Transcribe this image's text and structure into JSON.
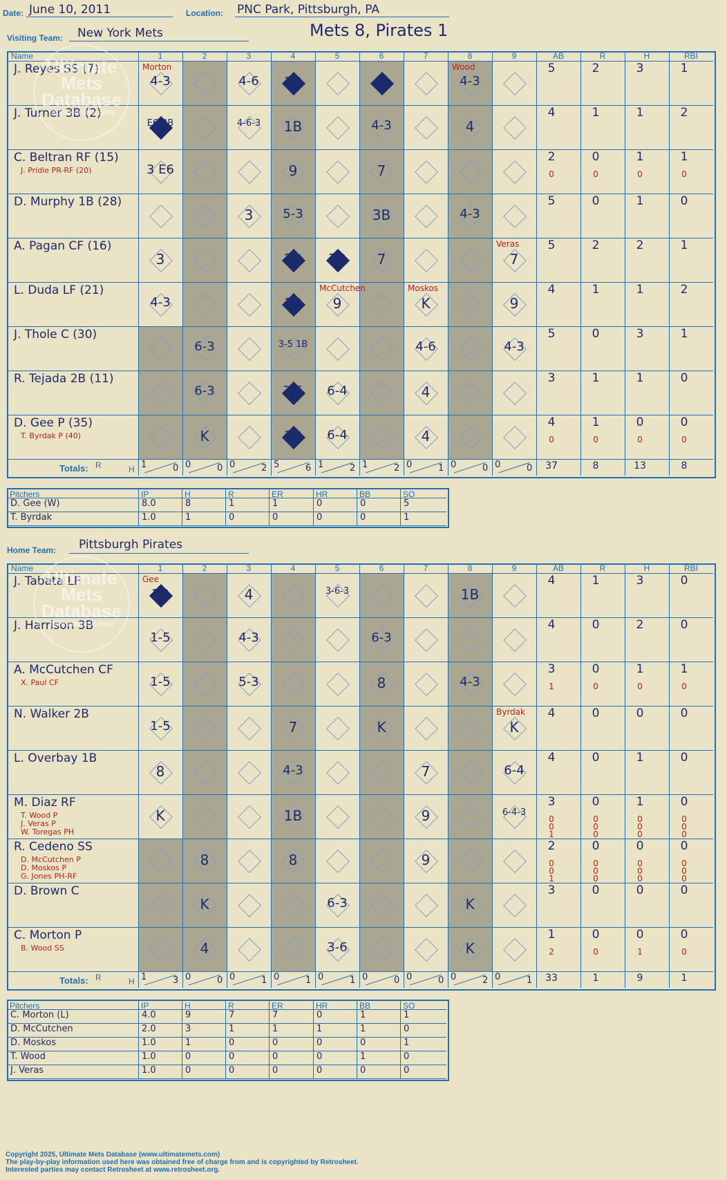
{
  "header": {
    "date_label": "Date:",
    "date": "June 10, 2011",
    "location_label": "Location:",
    "location": "PNC Park, Pittsburgh, PA",
    "score_title": "Mets 8, Pirates 1",
    "visiting_label": "Visiting Team:",
    "visiting_team": "New York Mets",
    "home_label": "Home Team:",
    "home_team": "Pittsburgh Pirates"
  },
  "columns": {
    "name": "Name",
    "innings": [
      "1",
      "2",
      "3",
      "4",
      "5",
      "6",
      "7",
      "8",
      "9"
    ],
    "stats": [
      "AB",
      "R",
      "H",
      "RBI"
    ]
  },
  "totals_label": "Totals:",
  "rh_label": [
    "R",
    "H"
  ],
  "visiting_lineup": [
    {
      "name": "J. Reyes SS (7)",
      "subs": [],
      "ab": [
        "5"
      ],
      "r": [
        "2"
      ],
      "h": [
        "3"
      ],
      "rbi": [
        "1"
      ]
    },
    {
      "name": "J. Turner 3B (2)",
      "subs": [],
      "ab": [
        "4"
      ],
      "r": [
        "1"
      ],
      "h": [
        "1"
      ],
      "rbi": [
        "2"
      ]
    },
    {
      "name": "C. Beltran RF (15)",
      "subs": [
        "J. Pridie PR-RF (20)"
      ],
      "ab": [
        "2",
        "0"
      ],
      "r": [
        "0",
        "0"
      ],
      "h": [
        "1",
        "0"
      ],
      "rbi": [
        "1",
        "0"
      ]
    },
    {
      "name": "D. Murphy 1B (28)",
      "subs": [],
      "ab": [
        "5"
      ],
      "r": [
        "0"
      ],
      "h": [
        "1"
      ],
      "rbi": [
        "0"
      ]
    },
    {
      "name": "A. Pagan CF (16)",
      "subs": [],
      "ab": [
        "5"
      ],
      "r": [
        "2"
      ],
      "h": [
        "2"
      ],
      "rbi": [
        "1"
      ]
    },
    {
      "name": "L. Duda LF (21)",
      "subs": [],
      "ab": [
        "4"
      ],
      "r": [
        "1"
      ],
      "h": [
        "1"
      ],
      "rbi": [
        "2"
      ]
    },
    {
      "name": "J. Thole C (30)",
      "subs": [],
      "ab": [
        "5"
      ],
      "r": [
        "0"
      ],
      "h": [
        "3"
      ],
      "rbi": [
        "1"
      ]
    },
    {
      "name": "R. Tejada 2B (11)",
      "subs": [],
      "ab": [
        "3"
      ],
      "r": [
        "1"
      ],
      "h": [
        "1"
      ],
      "rbi": [
        "0"
      ]
    },
    {
      "name": "D. Gee P (35)",
      "subs": [
        "T. Byrdak P (40)"
      ],
      "ab": [
        "4",
        "0"
      ],
      "r": [
        "1",
        "0"
      ],
      "h": [
        "0",
        "0"
      ],
      "rbi": [
        "0",
        "0"
      ]
    }
  ],
  "visiting_plays": [
    {
      "row": 0,
      "inn": 1,
      "text": "4-3"
    },
    {
      "row": 0,
      "inn": 3,
      "text": "4-6"
    },
    {
      "row": 0,
      "inn": 4,
      "text": "1B"
    },
    {
      "row": 0,
      "inn": 8,
      "text": "4-3"
    },
    {
      "row": 1,
      "inn": 1,
      "text": "E6 BB"
    },
    {
      "row": 1,
      "inn": 3,
      "text": "4-6-3"
    },
    {
      "row": 1,
      "inn": 4,
      "text": "1B"
    },
    {
      "row": 1,
      "inn": 6,
      "text": "4-3"
    },
    {
      "row": 1,
      "inn": 8,
      "text": "4"
    },
    {
      "row": 2,
      "inn": 1,
      "text": "3 E6"
    },
    {
      "row": 2,
      "inn": 4,
      "text": "9"
    },
    {
      "row": 2,
      "inn": 6,
      "text": "7"
    },
    {
      "row": 3,
      "inn": 3,
      "text": "3"
    },
    {
      "row": 3,
      "inn": 4,
      "text": "5-3"
    },
    {
      "row": 3,
      "inn": 6,
      "text": "3B"
    },
    {
      "row": 3,
      "inn": 8,
      "text": "4-3"
    },
    {
      "row": 4,
      "inn": 1,
      "text": "3"
    },
    {
      "row": 4,
      "inn": 4,
      "text": "2B"
    },
    {
      "row": 4,
      "inn": 5,
      "text": "3B"
    },
    {
      "row": 4,
      "inn": 6,
      "text": "7"
    },
    {
      "row": 4,
      "inn": 9,
      "text": "7"
    },
    {
      "row": 5,
      "inn": 1,
      "text": "4-3"
    },
    {
      "row": 5,
      "inn": 4,
      "text": "1B"
    },
    {
      "row": 5,
      "inn": 5,
      "text": "9"
    },
    {
      "row": 5,
      "inn": 7,
      "text": "K"
    },
    {
      "row": 5,
      "inn": 9,
      "text": "9"
    },
    {
      "row": 6,
      "inn": 2,
      "text": "6-3"
    },
    {
      "row": 6,
      "inn": 4,
      "text": "3-5 1B"
    },
    {
      "row": 6,
      "inn": 7,
      "text": "4-6"
    },
    {
      "row": 6,
      "inn": 9,
      "text": "4-3"
    },
    {
      "row": 7,
      "inn": 2,
      "text": "6-3"
    },
    {
      "row": 7,
      "inn": 4,
      "text": "3-5"
    },
    {
      "row": 7,
      "inn": 5,
      "text": "6-4"
    },
    {
      "row": 7,
      "inn": 7,
      "text": "4"
    },
    {
      "row": 8,
      "inn": 2,
      "text": "K"
    },
    {
      "row": 8,
      "inn": 4,
      "text": "1B"
    },
    {
      "row": 8,
      "inn": 5,
      "text": "6-4"
    },
    {
      "row": 8,
      "inn": 7,
      "text": "4"
    }
  ],
  "visiting_filled": [
    [
      0,
      4
    ],
    [
      0,
      6
    ],
    [
      1,
      1
    ],
    [
      4,
      4
    ],
    [
      4,
      5
    ],
    [
      5,
      4
    ],
    [
      7,
      4
    ],
    [
      8,
      4
    ]
  ],
  "visiting_annotations": [
    {
      "row": 0,
      "inn": 1,
      "text": "Morton"
    },
    {
      "row": 0,
      "inn": 8,
      "text": "Wood"
    },
    {
      "row": 4,
      "inn": 9,
      "text": "Veras"
    },
    {
      "row": 5,
      "inn": 5,
      "text": "McCutchen"
    },
    {
      "row": 5,
      "inn": 7,
      "text": "Moskos"
    }
  ],
  "visiting_totals": {
    "innings": [
      [
        "1",
        "0"
      ],
      [
        "0",
        "0"
      ],
      [
        "0",
        "2"
      ],
      [
        "5",
        "6"
      ],
      [
        "1",
        "2"
      ],
      [
        "1",
        "2"
      ],
      [
        "0",
        "1"
      ],
      [
        "0",
        "0"
      ],
      [
        "0",
        "0"
      ]
    ],
    "ab": "37",
    "r": "8",
    "h": "13",
    "rbi": "8"
  },
  "visiting_pitchers": {
    "headers": [
      "Pitchers",
      "IP",
      "H",
      "R",
      "ER",
      "HR",
      "BB",
      "SO"
    ],
    "rows": [
      [
        "D. Gee (W)",
        "8.0",
        "8",
        "1",
        "1",
        "0",
        "0",
        "5"
      ],
      [
        "T. Byrdak",
        "1.0",
        "1",
        "0",
        "0",
        "0",
        "0",
        "1"
      ]
    ]
  },
  "home_lineup": [
    {
      "name": "J. Tabata LF",
      "subs": [],
      "ab": [
        "4"
      ],
      "r": [
        "1"
      ],
      "h": [
        "3"
      ],
      "rbi": [
        "0"
      ]
    },
    {
      "name": "J. Harrison 3B",
      "subs": [],
      "ab": [
        "4"
      ],
      "r": [
        "0"
      ],
      "h": [
        "2"
      ],
      "rbi": [
        "0"
      ]
    },
    {
      "name": "A. McCutchen CF",
      "subs": [
        "X. Paul CF"
      ],
      "ab": [
        "3",
        "1"
      ],
      "r": [
        "0",
        "0"
      ],
      "h": [
        "1",
        "0"
      ],
      "rbi": [
        "1",
        "0"
      ]
    },
    {
      "name": "N. Walker 2B",
      "subs": [],
      "ab": [
        "4"
      ],
      "r": [
        "0"
      ],
      "h": [
        "0"
      ],
      "rbi": [
        "0"
      ]
    },
    {
      "name": "L. Overbay 1B",
      "subs": [],
      "ab": [
        "4"
      ],
      "r": [
        "0"
      ],
      "h": [
        "1"
      ],
      "rbi": [
        "0"
      ]
    },
    {
      "name": "M. Diaz RF",
      "subs": [
        "T. Wood P",
        "J. Veras P",
        "W. Toregas PH"
      ],
      "ab": [
        "3",
        "0",
        "0",
        "1"
      ],
      "r": [
        "0",
        "0",
        "0",
        "0"
      ],
      "h": [
        "1",
        "0",
        "0",
        "0"
      ],
      "rbi": [
        "0",
        "0",
        "0",
        "0"
      ]
    },
    {
      "name": "R. Cedeno SS",
      "subs": [
        "D. McCutchen P",
        "D. Moskos P",
        "G. Jones PH-RF"
      ],
      "ab": [
        "2",
        "0",
        "0",
        "1"
      ],
      "r": [
        "0",
        "0",
        "0",
        "0"
      ],
      "h": [
        "0",
        "0",
        "0",
        "0"
      ],
      "rbi": [
        "0",
        "0",
        "0",
        "0"
      ]
    },
    {
      "name": "D. Brown C",
      "subs": [],
      "ab": [
        "3"
      ],
      "r": [
        "0"
      ],
      "h": [
        "0"
      ],
      "rbi": [
        "0"
      ]
    },
    {
      "name": "C. Morton P",
      "subs": [
        "B. Wood SS"
      ],
      "ab": [
        "1",
        "2"
      ],
      "r": [
        "0",
        "0"
      ],
      "h": [
        "0",
        "1"
      ],
      "rbi": [
        "0",
        "0"
      ]
    }
  ],
  "home_plays": [
    {
      "row": 0,
      "inn": 1,
      "text": "1B"
    },
    {
      "row": 0,
      "inn": 3,
      "text": "4"
    },
    {
      "row": 0,
      "inn": 5,
      "text": "3-6-3"
    },
    {
      "row": 0,
      "inn": 8,
      "text": "1B"
    },
    {
      "row": 1,
      "inn": 1,
      "text": "1-5"
    },
    {
      "row": 1,
      "inn": 3,
      "text": "4-3"
    },
    {
      "row": 1,
      "inn": 6,
      "text": "6-3"
    },
    {
      "row": 2,
      "inn": 1,
      "text": "1-5"
    },
    {
      "row": 2,
      "inn": 3,
      "text": "5-3"
    },
    {
      "row": 2,
      "inn": 6,
      "text": "8"
    },
    {
      "row": 2,
      "inn": 8,
      "text": "4-3"
    },
    {
      "row": 3,
      "inn": 1,
      "text": "1-5"
    },
    {
      "row": 3,
      "inn": 4,
      "text": "7"
    },
    {
      "row": 3,
      "inn": 6,
      "text": "K"
    },
    {
      "row": 3,
      "inn": 9,
      "text": "K"
    },
    {
      "row": 4,
      "inn": 1,
      "text": "8"
    },
    {
      "row": 4,
      "inn": 4,
      "text": "4-3"
    },
    {
      "row": 4,
      "inn": 7,
      "text": "7"
    },
    {
      "row": 4,
      "inn": 9,
      "text": "6-4"
    },
    {
      "row": 5,
      "inn": 1,
      "text": "K"
    },
    {
      "row": 5,
      "inn": 4,
      "text": "1B"
    },
    {
      "row": 5,
      "inn": 7,
      "text": "9"
    },
    {
      "row": 5,
      "inn": 9,
      "text": "6-4-3"
    },
    {
      "row": 6,
      "inn": 2,
      "text": "8"
    },
    {
      "row": 6,
      "inn": 4,
      "text": "8"
    },
    {
      "row": 6,
      "inn": 7,
      "text": "9"
    },
    {
      "row": 7,
      "inn": 2,
      "text": "K"
    },
    {
      "row": 7,
      "inn": 5,
      "text": "6-3"
    },
    {
      "row": 7,
      "inn": 8,
      "text": "K"
    },
    {
      "row": 8,
      "inn": 2,
      "text": "4"
    },
    {
      "row": 8,
      "inn": 5,
      "text": "3-6"
    },
    {
      "row": 8,
      "inn": 8,
      "text": "K"
    }
  ],
  "home_filled": [
    [
      0,
      1
    ]
  ],
  "home_annotations": [
    {
      "row": 0,
      "inn": 1,
      "text": "Gee"
    },
    {
      "row": 3,
      "inn": 9,
      "text": "Byrdak"
    }
  ],
  "home_totals": {
    "innings": [
      [
        "1",
        "3"
      ],
      [
        "0",
        "0"
      ],
      [
        "0",
        "1"
      ],
      [
        "0",
        "1"
      ],
      [
        "0",
        "1"
      ],
      [
        "0",
        "0"
      ],
      [
        "0",
        "0"
      ],
      [
        "0",
        "2"
      ],
      [
        "0",
        "1"
      ]
    ],
    "ab": "33",
    "r": "1",
    "h": "9",
    "rbi": "1"
  },
  "home_pitchers": {
    "headers": [
      "Pitchers",
      "IP",
      "H",
      "R",
      "ER",
      "HR",
      "BB",
      "SO"
    ],
    "rows": [
      [
        "C. Morton (L)",
        "4.0",
        "9",
        "7",
        "7",
        "0",
        "1",
        "1"
      ],
      [
        "D. McCutchen",
        "2.0",
        "3",
        "1",
        "1",
        "1",
        "1",
        "0"
      ],
      [
        "D. Moskos",
        "1.0",
        "1",
        "0",
        "0",
        "0",
        "0",
        "1"
      ],
      [
        "T. Wood",
        "1.0",
        "0",
        "0",
        "0",
        "0",
        "1",
        "0"
      ],
      [
        "J. Veras",
        "1.0",
        "0",
        "0",
        "0",
        "0",
        "0",
        "0"
      ]
    ]
  },
  "watermark": [
    "Ultimate",
    "Mets",
    "Database",
    "ultimatemets.com"
  ],
  "footer": [
    "Copyright 2025, Ultimate Mets Database (www.ultimatemets.com)",
    "The play-by-play information used here was obtained free of charge from and is copyrighted by Retrosheet.",
    "Interested parties may contact Retrosheet at www.retrosheet.org."
  ],
  "colors": {
    "paper": "#ebe3c6",
    "line": "#1f6fb2",
    "shade": "#aaa692",
    "ink": "#1d2a6b",
    "sub_ink": "#b0241c"
  }
}
